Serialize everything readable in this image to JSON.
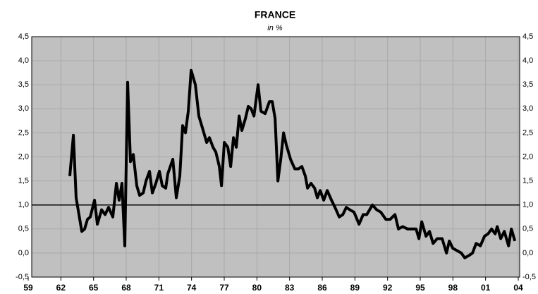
{
  "chart_data": {
    "type": "line",
    "title": "FRANCE",
    "subtitle": "in %",
    "x": [
      1962.82,
      1963.15,
      1963.4,
      1963.92,
      1964.18,
      1964.44,
      1964.7,
      1965.09,
      1965.35,
      1965.74,
      1966.06,
      1966.38,
      1966.77,
      1967.1,
      1967.35,
      1967.61,
      1967.87,
      1968.13,
      1968.39,
      1968.65,
      1968.97,
      1969.23,
      1969.56,
      1969.82,
      1970.14,
      1970.4,
      1970.72,
      1971.05,
      1971.31,
      1971.63,
      1971.82,
      1972.28,
      1972.6,
      1972.92,
      1973.18,
      1973.44,
      1973.7,
      1973.96,
      1974.35,
      1974.67,
      1975.0,
      1975.39,
      1975.64,
      1975.97,
      1976.23,
      1976.55,
      1976.75,
      1977.01,
      1977.33,
      1977.59,
      1977.85,
      1978.11,
      1978.37,
      1978.62,
      1978.95,
      1979.21,
      1979.47,
      1979.73,
      1980.11,
      1980.37,
      1980.76,
      1981.15,
      1981.41,
      1981.67,
      1981.93,
      1982.19,
      1982.45,
      1982.7,
      1983.09,
      1983.48,
      1983.81,
      1984.13,
      1984.45,
      1984.65,
      1984.97,
      1985.3,
      1985.55,
      1985.81,
      1986.14,
      1986.46,
      1986.85,
      1987.17,
      1987.56,
      1987.89,
      1988.21,
      1988.53,
      1988.92,
      1989.38,
      1989.76,
      1990.09,
      1990.61,
      1991.0,
      1991.38,
      1991.84,
      1992.23,
      1992.68,
      1993.0,
      1993.39,
      1993.84,
      1994.23,
      1994.62,
      1994.88,
      1995.14,
      1995.53,
      1995.85,
      1996.18,
      1996.56,
      1997.01,
      1997.41,
      1997.67,
      1997.99,
      1998.38,
      1998.77,
      1999.09,
      1999.48,
      1999.8,
      2000.13,
      2000.52,
      2000.9,
      2001.23,
      2001.55,
      2001.88,
      2002.07,
      2002.39,
      2002.72,
      2003.11,
      2003.37,
      2003.69
    ],
    "series": [
      {
        "name": "France",
        "color": "#000000",
        "values": [
          1.6,
          2.45,
          1.15,
          0.45,
          0.5,
          0.7,
          0.75,
          1.1,
          0.6,
          0.9,
          0.8,
          0.95,
          0.75,
          1.45,
          1.1,
          1.45,
          0.15,
          3.55,
          1.9,
          2.05,
          1.4,
          1.2,
          1.25,
          1.5,
          1.7,
          1.25,
          1.45,
          1.7,
          1.4,
          1.35,
          1.65,
          1.95,
          1.15,
          1.6,
          2.65,
          2.5,
          2.95,
          3.8,
          3.5,
          2.85,
          2.6,
          2.3,
          2.4,
          2.2,
          2.1,
          1.8,
          1.4,
          2.3,
          2.2,
          1.8,
          2.4,
          2.2,
          2.85,
          2.55,
          2.8,
          3.05,
          3.0,
          2.85,
          3.5,
          2.95,
          2.9,
          3.15,
          3.15,
          2.8,
          1.5,
          1.95,
          2.5,
          2.25,
          1.95,
          1.75,
          1.75,
          1.8,
          1.6,
          1.35,
          1.45,
          1.35,
          1.15,
          1.3,
          1.1,
          1.3,
          1.1,
          0.95,
          0.75,
          0.8,
          0.95,
          0.9,
          0.85,
          0.6,
          0.8,
          0.8,
          1.0,
          0.9,
          0.85,
          0.7,
          0.7,
          0.8,
          0.5,
          0.55,
          0.5,
          0.5,
          0.5,
          0.3,
          0.65,
          0.35,
          0.45,
          0.2,
          0.3,
          0.3,
          0.0,
          0.25,
          0.1,
          0.05,
          0.0,
          -0.1,
          -0.05,
          0.0,
          0.2,
          0.15,
          0.35,
          0.4,
          0.5,
          0.4,
          0.55,
          0.3,
          0.45,
          0.15,
          0.5,
          0.25
        ]
      }
    ],
    "hline": 1,
    "xlim": [
      1959,
      2004
    ],
    "xticks": [
      {
        "value": 1959,
        "label": "59"
      },
      {
        "value": 1962,
        "label": "62"
      },
      {
        "value": 1965,
        "label": "65"
      },
      {
        "value": 1968,
        "label": "68"
      },
      {
        "value": 1971,
        "label": "71"
      },
      {
        "value": 1974,
        "label": "74"
      },
      {
        "value": 1977,
        "label": "77"
      },
      {
        "value": 1980,
        "label": "80"
      },
      {
        "value": 1983,
        "label": "83"
      },
      {
        "value": 1986,
        "label": "86"
      },
      {
        "value": 1989,
        "label": "89"
      },
      {
        "value": 1992,
        "label": "92"
      },
      {
        "value": 1995,
        "label": "95"
      },
      {
        "value": 1998,
        "label": "98"
      },
      {
        "value": 2001,
        "label": "01"
      },
      {
        "value": 2004,
        "label": "04"
      }
    ],
    "ylim": [
      -0.5,
      4.5
    ],
    "yticks": [
      {
        "value": -0.5,
        "label": "-0,5"
      },
      {
        "value": 0,
        "label": "0,0"
      },
      {
        "value": 0.5,
        "label": "0,5"
      },
      {
        "value": 1,
        "label": "1,0"
      },
      {
        "value": 1.5,
        "label": "1,5"
      },
      {
        "value": 2,
        "label": "2,0"
      },
      {
        "value": 2.5,
        "label": "2,5"
      },
      {
        "value": 3,
        "label": "3,0"
      },
      {
        "value": 3.5,
        "label": "3,5"
      },
      {
        "value": 4,
        "label": "4,0"
      },
      {
        "value": 4.5,
        "label": "4,5"
      }
    ],
    "grid": true
  }
}
